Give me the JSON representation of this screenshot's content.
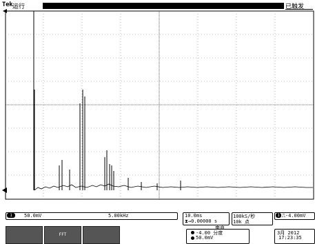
{
  "header": {
    "brand": "Tek",
    "run_status": "运行",
    "trigger_status": "已触发"
  },
  "channel1": {
    "badge": "1",
    "scale": "50.0mV"
  },
  "math": {
    "center_freq": "5.00kHz"
  },
  "timebase": {
    "scale": "10.0ms",
    "delay": "0.00000 s"
  },
  "sampling": {
    "rate": "100kS/秒",
    "record_length": "10k 点"
  },
  "trigger": {
    "badge": "1",
    "level": "-4.00mV"
  },
  "menu": {
    "softkey1": "",
    "softkey2": "FFT",
    "softkey3": "",
    "title": "垂直",
    "position": "-4.00 分度",
    "scale": "50.0mV"
  },
  "clock": {
    "date": "3月 2012",
    "time": "17:23:35"
  }
}
